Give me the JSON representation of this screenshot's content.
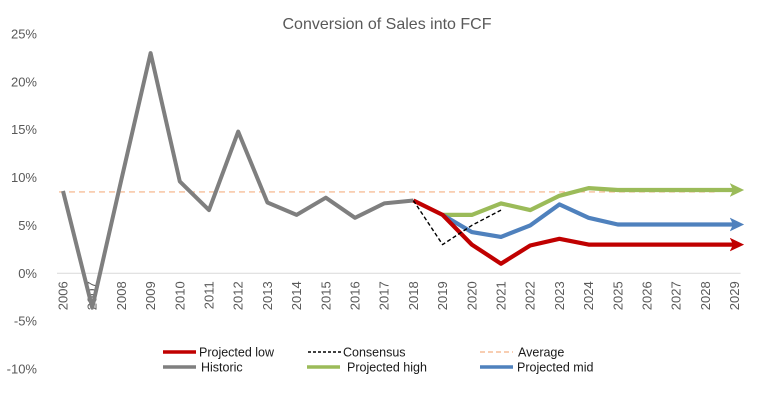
{
  "chart_data": {
    "type": "line",
    "title": "Conversion of Sales into FCF",
    "xlabel": "",
    "ylabel": "",
    "ylim": [
      -10,
      25
    ],
    "y_ticks": [
      25,
      20,
      15,
      10,
      5,
      0,
      -5,
      -10
    ],
    "y_tick_labels": [
      "25%",
      "20%",
      "15%",
      "10%",
      "5%",
      "0%",
      "-5%",
      "-10%"
    ],
    "categories": [
      "2006",
      "2007",
      "2008",
      "2009",
      "2010",
      "2011",
      "2012",
      "2013",
      "2014",
      "2015",
      "2016",
      "2017",
      "2018",
      "2019",
      "2020",
      "2021",
      "2022",
      "2023",
      "2024",
      "2025",
      "2026",
      "2027",
      "2028",
      "2029"
    ],
    "series": [
      {
        "name": "Historic",
        "color": "#7f7f7f",
        "style": "solid",
        "x": [
          "2006",
          "2007",
          "2008",
          "2009",
          "2010",
          "2011",
          "2012",
          "2013",
          "2014",
          "2015",
          "2016",
          "2017",
          "2018"
        ],
        "values": [
          8.6,
          -3.6,
          9.8,
          23.0,
          9.6,
          6.6,
          14.8,
          7.4,
          6.1,
          7.9,
          5.8,
          7.3,
          7.6
        ]
      },
      {
        "name": "Consensus",
        "color": "#000000",
        "style": "dashed",
        "x": [
          "2018",
          "2019",
          "2020",
          "2021"
        ],
        "values": [
          7.6,
          3.0,
          5.0,
          6.6
        ]
      },
      {
        "name": "Projected high",
        "color": "#9bbb59",
        "style": "solid",
        "arrow": true,
        "x": [
          "2019",
          "2020",
          "2021",
          "2022",
          "2023",
          "2024",
          "2025",
          "2026",
          "2027",
          "2028",
          "2029"
        ],
        "values": [
          6.1,
          6.1,
          7.3,
          6.6,
          8.1,
          8.9,
          8.7,
          8.7,
          8.7,
          8.7,
          8.7
        ]
      },
      {
        "name": "Projected mid",
        "color": "#4f81bd",
        "style": "solid",
        "arrow": true,
        "x": [
          "2019",
          "2020",
          "2021",
          "2022",
          "2023",
          "2024",
          "2025",
          "2026",
          "2027",
          "2028",
          "2029"
        ],
        "values": [
          6.1,
          4.3,
          3.8,
          5.0,
          7.2,
          5.8,
          5.1,
          5.1,
          5.1,
          5.1,
          5.1
        ]
      },
      {
        "name": "Projected low",
        "color": "#c00000",
        "style": "solid",
        "arrow": true,
        "x": [
          "2018",
          "2019",
          "2020",
          "2021",
          "2022",
          "2023",
          "2024",
          "2025",
          "2026",
          "2027",
          "2028",
          "2029"
        ],
        "values": [
          7.6,
          6.1,
          3.0,
          1.0,
          2.9,
          3.6,
          3.0,
          3.0,
          3.0,
          3.0,
          3.0,
          3.0
        ]
      },
      {
        "name": "Average",
        "color": "#f4b183",
        "style": "dashed",
        "constant": 8.5,
        "x": [
          "2006",
          "2029"
        ],
        "values": [
          8.5,
          8.5
        ]
      }
    ],
    "legend": {
      "position": "bottom",
      "rows": [
        [
          "Projected low",
          "Consensus",
          "Average"
        ],
        [
          "Historic",
          "Projected high",
          "Projected mid"
        ]
      ]
    }
  }
}
